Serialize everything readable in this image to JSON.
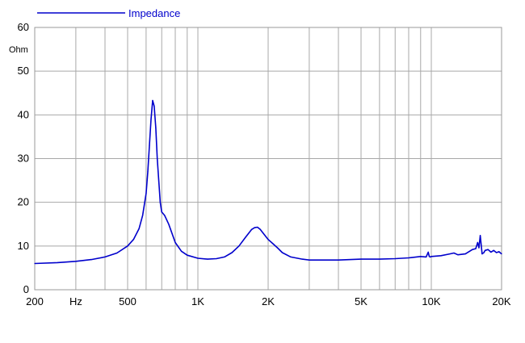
{
  "chart_data": {
    "type": "line",
    "title": "",
    "xlabel": "",
    "ylabel": "",
    "y_unit_label": "Ohm",
    "x_unit_label": "Hz",
    "x_scale": "log",
    "xlim": [
      200,
      20000
    ],
    "ylim": [
      0,
      60
    ],
    "grid": true,
    "legend": "top-left",
    "x_ticks": [
      {
        "value": 200,
        "label": "200"
      },
      {
        "value": 300,
        "label": "Hz"
      },
      {
        "value": 500,
        "label": "500"
      },
      {
        "value": 1000,
        "label": "1K"
      },
      {
        "value": 2000,
        "label": "2K"
      },
      {
        "value": 5000,
        "label": "5K"
      },
      {
        "value": 10000,
        "label": "10K"
      },
      {
        "value": 20000,
        "label": "20K"
      }
    ],
    "x_gridlines": [
      300,
      400,
      500,
      600,
      700,
      800,
      900,
      1000,
      2000,
      3000,
      4000,
      5000,
      6000,
      7000,
      8000,
      9000,
      10000,
      20000
    ],
    "y_ticks": [
      0,
      10,
      20,
      30,
      40,
      50,
      60
    ],
    "series": [
      {
        "name": "Impedance",
        "color": "#0000cc",
        "x": [
          200,
          250,
          300,
          350,
          400,
          450,
          500,
          530,
          560,
          580,
          600,
          610,
          620,
          630,
          640,
          650,
          660,
          670,
          690,
          700,
          720,
          750,
          800,
          850,
          900,
          1000,
          1100,
          1200,
          1300,
          1400,
          1500,
          1600,
          1700,
          1750,
          1800,
          1850,
          1900,
          2000,
          2100,
          2200,
          2300,
          2500,
          2800,
          3000,
          3500,
          4000,
          5000,
          6000,
          7000,
          8000,
          9000,
          9500,
          9700,
          9800,
          9900,
          10000,
          11000,
          12000,
          12500,
          13000,
          14000,
          15000,
          15500,
          15800,
          16000,
          16200,
          16500,
          16800,
          17000,
          17500,
          18000,
          18500,
          19000,
          19500,
          20000
        ],
        "values": [
          6.0,
          6.2,
          6.5,
          6.9,
          7.5,
          8.4,
          10.0,
          11.5,
          14.0,
          17.0,
          22.0,
          27.0,
          33.0,
          39.0,
          43.3,
          42.0,
          37.0,
          30.0,
          20.0,
          17.8,
          17.0,
          15.0,
          10.8,
          8.8,
          7.9,
          7.2,
          7.0,
          7.1,
          7.5,
          8.5,
          10.0,
          12.0,
          13.8,
          14.2,
          14.3,
          13.8,
          13.0,
          11.5,
          10.5,
          9.5,
          8.5,
          7.5,
          7.0,
          6.8,
          6.8,
          6.8,
          7.0,
          7.0,
          7.1,
          7.3,
          7.6,
          7.5,
          8.6,
          7.6,
          7.5,
          7.6,
          7.8,
          8.2,
          8.4,
          8.0,
          8.2,
          9.2,
          9.4,
          10.8,
          9.6,
          12.4,
          8.2,
          8.5,
          9.0,
          9.2,
          8.6,
          9.0,
          8.5,
          8.7,
          8.2
        ]
      }
    ]
  }
}
